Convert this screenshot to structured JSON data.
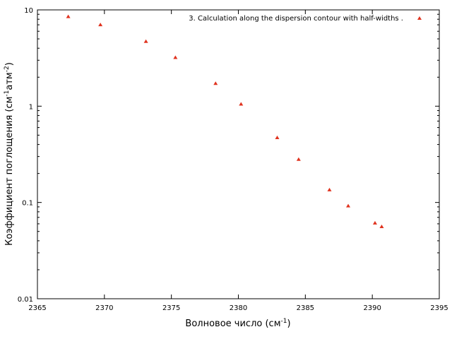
{
  "chart_data": {
    "type": "scatter",
    "xlabel_main": "Волновое число (см",
    "xlabel_sup": "-1",
    "xlabel_end": ")",
    "ylabel_main": "Коэффициент поглощения (см",
    "ylabel_sup1": "-1",
    "ylabel_mid": "атм",
    "ylabel_sup2": "-2",
    "ylabel_end": ")",
    "xlim": [
      2365,
      2395
    ],
    "ylim": [
      0.01,
      10
    ],
    "yscale": "log",
    "grid": false,
    "legend_position": "top-right",
    "xticks": [
      "2365",
      "2370",
      "2375",
      "2380",
      "2385",
      "2390",
      "2395"
    ],
    "yticks": [
      "0.01",
      "0.1",
      "1",
      "10"
    ],
    "series": [
      {
        "name": "3. Calculation along the dispersion contour with half-widths .",
        "color": "#e0321e",
        "marker": "triangle",
        "x": [
          2367.3,
          2369.7,
          2373.1,
          2375.3,
          2378.3,
          2380.2,
          2382.9,
          2384.5,
          2386.8,
          2388.2,
          2390.2,
          2390.7
        ],
        "y": [
          8.5,
          7.0,
          4.7,
          3.2,
          1.72,
          1.05,
          0.47,
          0.28,
          0.135,
          0.092,
          0.061,
          0.056
        ]
      }
    ]
  }
}
